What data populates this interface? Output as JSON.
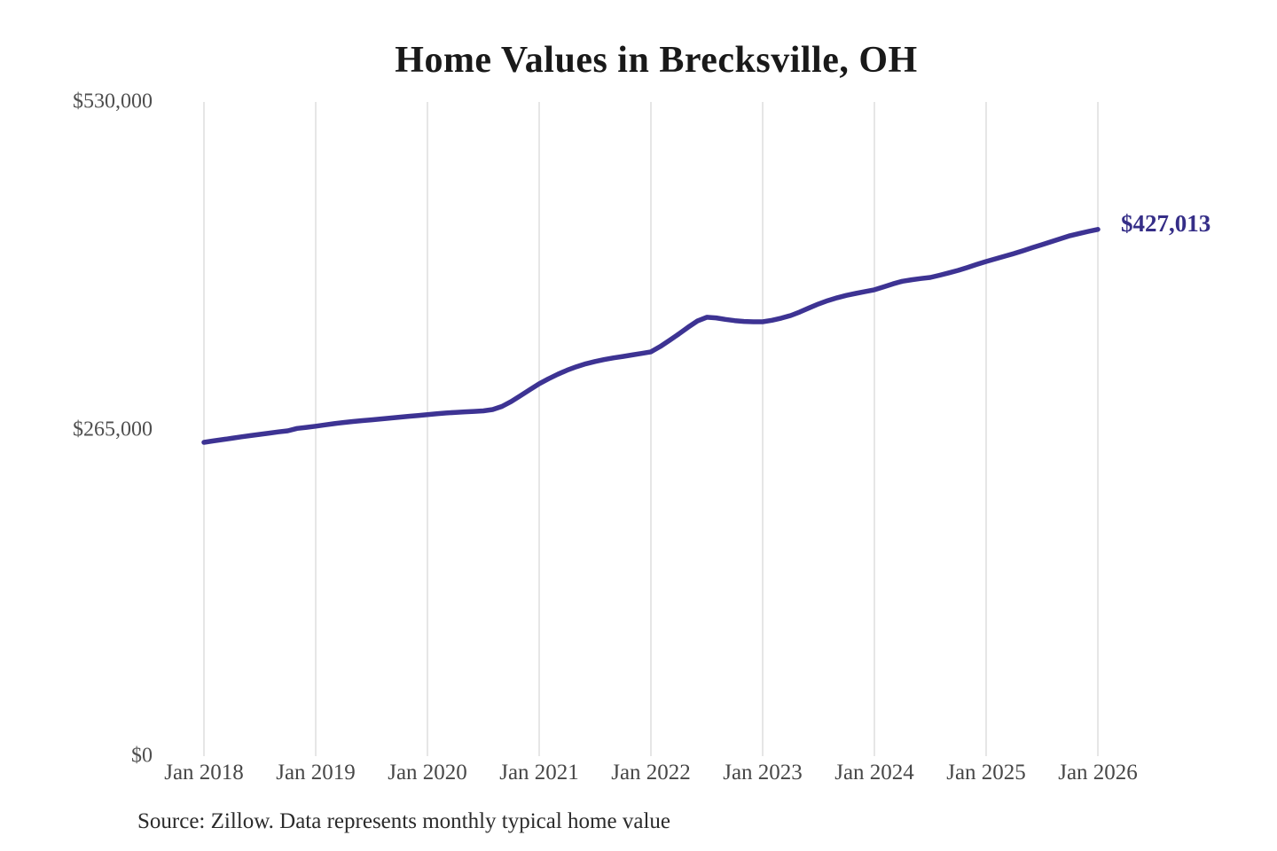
{
  "title": "Home Values in Brecksville, OH",
  "source_note": "Source: Zillow. Data represents monthly typical home value",
  "colors": {
    "line": "#3d3393",
    "end_label": "#352e87",
    "grid": "#cccccc",
    "axis_text": "#4f4f4f",
    "title_text": "#191919",
    "background": "#ffffff"
  },
  "chart_data": {
    "type": "line",
    "title": "Home Values in Brecksville, OH",
    "series_name": "Typical home value (monthly)",
    "x_start": "2018-01",
    "x_end": "2026-01",
    "x_interval": "monthly",
    "x_tick_labels": [
      "Jan 2018",
      "Jan 2019",
      "Jan 2020",
      "Jan 2021",
      "Jan 2022",
      "Jan 2023",
      "Jan 2024",
      "Jan 2025",
      "Jan 2026"
    ],
    "y_ticks": [
      {
        "label": "$530,000",
        "value": 530000
      },
      {
        "label": "$265,000",
        "value": 265000
      },
      {
        "label": "$0",
        "value": 0
      }
    ],
    "ylim": [
      0,
      530000
    ],
    "grid": "vertical-only",
    "legend": "none",
    "end_label": "$427,013",
    "end_value": 427013,
    "values": [
      255000,
      256100,
      257200,
      258300,
      259400,
      260400,
      261400,
      262400,
      263400,
      264300,
      266200,
      267100,
      268000,
      269100,
      270100,
      271000,
      271800,
      272500,
      273200,
      273900,
      274600,
      275300,
      276000,
      276700,
      277400,
      278100,
      278700,
      279200,
      279600,
      280000,
      280400,
      281500,
      284000,
      288000,
      292700,
      297500,
      302300,
      306300,
      310000,
      313300,
      316100,
      318400,
      320300,
      321900,
      323200,
      324400,
      325600,
      326800,
      328100,
      332400,
      337400,
      342600,
      348000,
      353000,
      356000,
      355500,
      354300,
      353300,
      352700,
      352400,
      352400,
      353600,
      355300,
      357400,
      360300,
      363600,
      366800,
      369500,
      371800,
      373700,
      375300,
      376800,
      378200,
      380600,
      383000,
      385100,
      386300,
      387300,
      388200,
      390000,
      391900,
      393900,
      396300,
      398700,
      401100,
      403200,
      405400,
      407500,
      409900,
      412300,
      414700,
      417100,
      419500,
      421900,
      423700,
      425400,
      427013
    ]
  }
}
